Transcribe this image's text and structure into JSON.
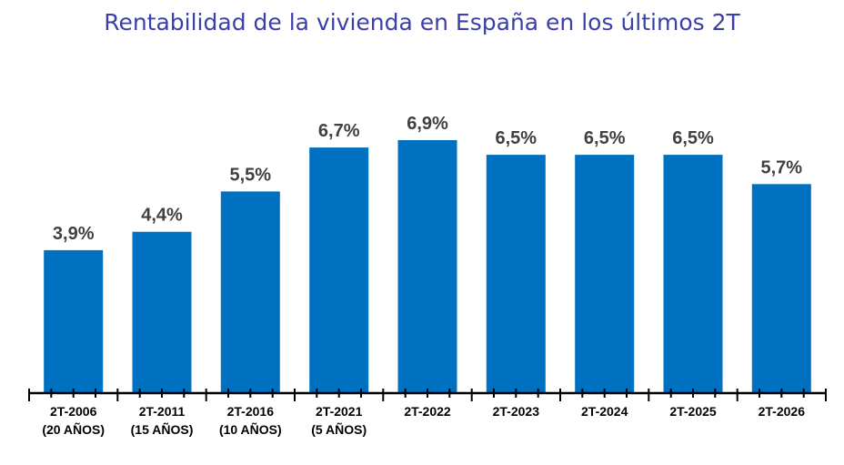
{
  "title": "Rentabilidad de la vivienda en España en los últimos 2T",
  "colors": {
    "bar": "#0070c0",
    "title": "#3b3fa8",
    "value_label": "#404040",
    "axis": "#000000"
  },
  "chart_data": {
    "type": "bar",
    "title": "Rentabilidad de la vivienda en España en los últimos 2T",
    "categories": [
      [
        "2T-2006",
        "(20 AÑOS)"
      ],
      [
        "2T-2011",
        "(15 AÑOS)"
      ],
      [
        "2T-2016",
        "(10 AÑOS)"
      ],
      [
        "2T-2021",
        "(5 AÑOS)"
      ],
      [
        "2T-2022"
      ],
      [
        "2T-2023"
      ],
      [
        "2T-2024"
      ],
      [
        "2T-2025"
      ],
      [
        "2T-2026"
      ]
    ],
    "values": [
      3.9,
      4.4,
      5.5,
      6.7,
      6.9,
      6.5,
      6.5,
      6.5,
      5.7
    ],
    "value_labels": [
      "3,9%",
      "4,4%",
      "5,5%",
      "6,7%",
      "6,9%",
      "6,5%",
      "6,5%",
      "6,5%",
      "5,7%"
    ],
    "ylim": [
      0,
      7
    ],
    "xlabel": "",
    "ylabel": "",
    "grid": false,
    "legend": "none"
  }
}
